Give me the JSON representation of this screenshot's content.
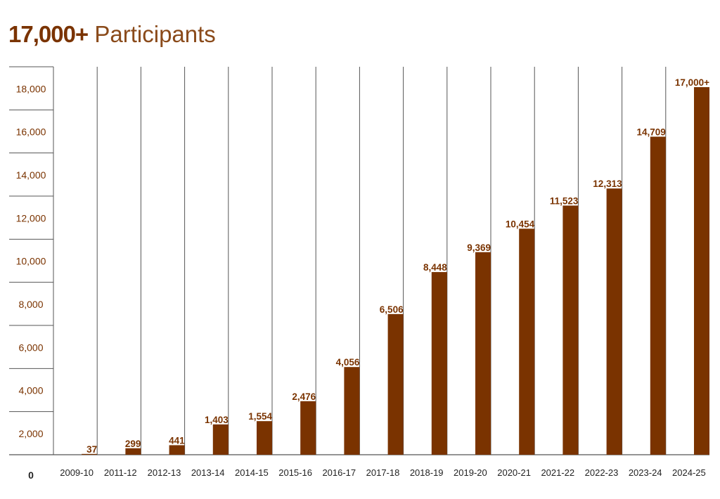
{
  "chart_data": {
    "type": "bar",
    "title_bold": "17,000+",
    "title_rest": "Participants",
    "categories": [
      "2009-10",
      "2011-12",
      "2012-13",
      "2013-14",
      "2014-15",
      "2015-16",
      "2016-17",
      "2017-18",
      "2018-19",
      "2019-20",
      "2020-21",
      "2021-22",
      "2022-23",
      "2023-24",
      "2024-25"
    ],
    "values": [
      37,
      299,
      441,
      1403,
      1554,
      2476,
      4056,
      6506,
      8448,
      9369,
      10454,
      11523,
      12313,
      14709,
      17000
    ],
    "data_labels": [
      "37",
      "299",
      "441",
      "1,403",
      "1,554",
      "2,476",
      "4,056",
      "6,506",
      "8,448",
      "9,369",
      "10,454",
      "11,523",
      "12,313",
      "14,709",
      "17,000+"
    ],
    "y_tick_labels": [
      "0",
      "2,000",
      "4,000",
      "6,000",
      "8,000",
      "10,000",
      "12,000",
      "14,000",
      "16,000",
      "18,000"
    ],
    "xlabel": "",
    "ylabel": "",
    "ylim": [
      0,
      18000
    ],
    "grid": true,
    "colors": {
      "bar": "#7a3300",
      "label": "#7a3300",
      "axis_text": "#222222",
      "grid": "#555555"
    }
  }
}
